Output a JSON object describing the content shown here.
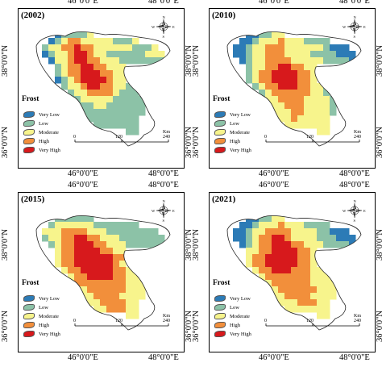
{
  "panels": [
    {
      "title": "(2002)",
      "grid_key": "p2002"
    },
    {
      "title": "(2010)",
      "grid_key": "p2010"
    },
    {
      "title": "(2015)",
      "grid_key": "p2015"
    },
    {
      "title": "(2021)",
      "grid_key": "p2021"
    }
  ],
  "axes": {
    "lon_left": "46°0'0\"E",
    "lon_right": "48°0'0\"E",
    "lat_top": "38°0'0\"N",
    "lat_bottom": "36°0'0\"N"
  },
  "legend": {
    "title": "Frost",
    "classes": [
      {
        "label": "Very Low",
        "color": "#2c7bb6"
      },
      {
        "label": "Low",
        "color": "#8cc2a7"
      },
      {
        "label": "Moderate",
        "color": "#f7f48c"
      },
      {
        "label": "High",
        "color": "#f28f3b"
      },
      {
        "label": "Very High",
        "color": "#d7191c"
      }
    ]
  },
  "scalebar": {
    "unit": "Km",
    "ticks": [
      "0",
      "120",
      "240"
    ]
  },
  "compass": {
    "n": "N",
    "e": "E",
    "s": "S",
    "w": "W"
  },
  "grids": {
    "p2002": [
      "..........................",
      "......122223..............",
      ".....12344333332223.......",
      "....233445443333332223....",
      "....1233455433222222333...",
      ".....133455443332222222...",
      "......23445544333.........",
      "......234455544332........",
      "......12345555433.........",
      ".......233455443322.......",
      "........23344443222.......",
      "........223333322222......",
      ".........22233222222......",
      "..........2222222222......",
      "...........22222222.......",
      "............2222222.......",
      ".................22.......",
      ".........................."
    ],
    "p2010": [
      "..........................",
      "......112233..............",
      ".....11233343332222.......",
      "....112334443333332111....",
      "....1123344433332222111...",
      ".....123344443333322221...",
      "......23344554433.........",
      "......234455554432........",
      "......23445555443.........",
      ".......234455544332.......",
      "........23444444332.......",
      "........233444433332......",
      ".........33344433332......",
      "..........3334433332......",
      "...........33433333.......",
      "............3333333.......",
      ".................33.......",
      ".........................."
    ],
    "p2015": [
      "..........................",
      "......222222..............",
      ".....23333332222222.......",
      "....333444433322222222....",
      "....2334455443332222222...",
      ".....234455544333222222...",
      "......34455554433.........",
      "......344555555443........",
      "......34455555543.........",
      ".......344555554433.......",
      "........34455554433.......",
      "........344444444333......",
      ".........33444444333......",
      "..........3344443333......",
      "...........33444433.......",
      "............3344433.......",
      ".................33.......",
      ".........................."
    ],
    "p2021": [
      "..........................",
      "......112233..............",
      ".....11233343332222.......",
      "....112334444333322111....",
      "....1123445543333222111...",
      ".....123445554433322221...",
      "......33445555443.........",
      "......344555554433........",
      "......34455555443.........",
      ".......344555444333.......",
      "........34444444333.......",
      "........334444443333......",
      ".........33444444333......",
      "..........3344443333......",
      "...........33344433.......",
      "............3333333.......",
      ".................33.......",
      ".........................."
    ]
  }
}
